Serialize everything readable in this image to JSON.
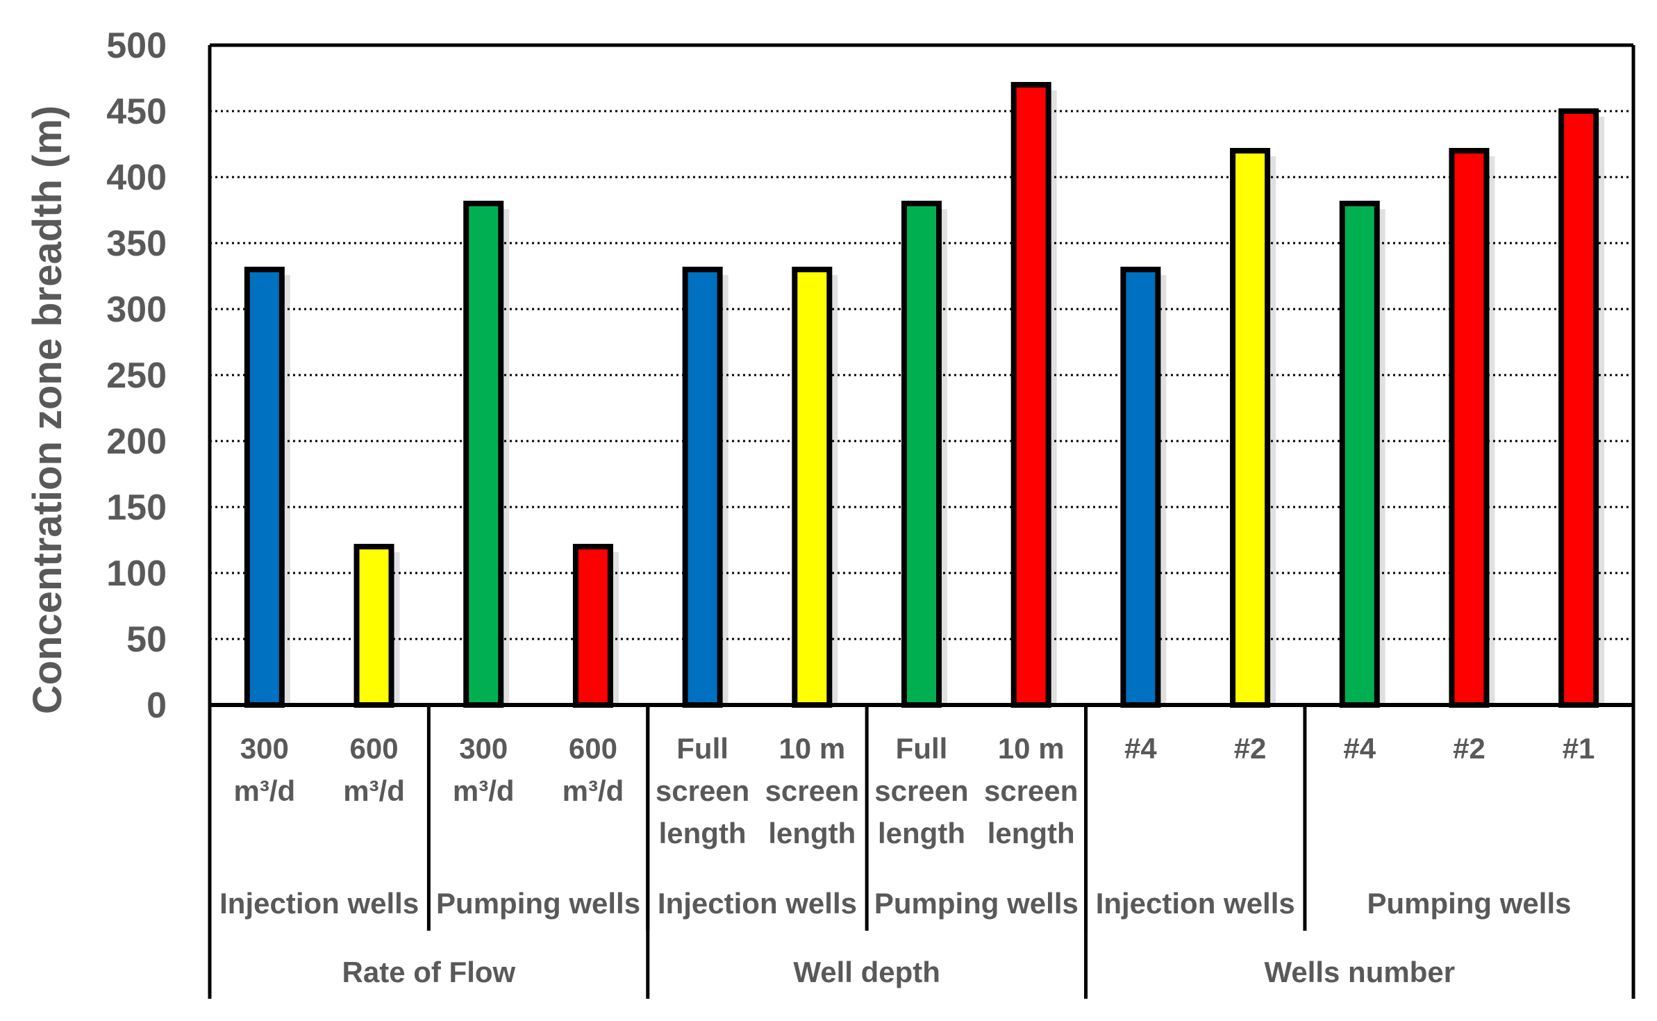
{
  "chart_data": {
    "type": "bar",
    "ylabel": "Concentration zone breadth (m)",
    "xlabel": "",
    "ylim": [
      0,
      500
    ],
    "yticks": [
      "0",
      "50",
      "100",
      "150",
      "200",
      "250",
      "300",
      "350",
      "400",
      "450",
      "500"
    ],
    "grid": "horizontal dotted",
    "categories": [
      [
        "300",
        "m³/d"
      ],
      [
        "600",
        "m³/d"
      ],
      [
        "300",
        "m³/d"
      ],
      [
        "600",
        "m³/d"
      ],
      [
        "Full",
        "screen",
        "length"
      ],
      [
        "10 m",
        "screen",
        "length"
      ],
      [
        "Full",
        "screen",
        "length"
      ],
      [
        "10 m",
        "screen",
        "length"
      ],
      [
        "#4"
      ],
      [
        "#2"
      ],
      [
        "#4"
      ],
      [
        "#2"
      ],
      [
        "#1"
      ]
    ],
    "values": [
      330,
      120,
      380,
      120,
      330,
      330,
      380,
      470,
      330,
      420,
      380,
      420,
      450
    ],
    "bar_colors": [
      "#0070C0",
      "#FFFF00",
      "#00B050",
      "#FF0000",
      "#0070C0",
      "#FFFF00",
      "#00B050",
      "#FF0000",
      "#0070C0",
      "#FFFF00",
      "#00B050",
      "#FF0000",
      "#FF0000"
    ],
    "subgroups": [
      {
        "label": "Injection wells",
        "start": 0,
        "end": 1
      },
      {
        "label": "Pumping wells",
        "start": 2,
        "end": 3
      },
      {
        "label": "Injection wells",
        "start": 4,
        "end": 5
      },
      {
        "label": "Pumping wells",
        "start": 6,
        "end": 7
      },
      {
        "label": "Injection wells",
        "start": 8,
        "end": 9
      },
      {
        "label": "Pumping wells",
        "start": 10,
        "end": 12
      }
    ],
    "groups": [
      {
        "label": "Rate of Flow",
        "start": 0,
        "end": 3
      },
      {
        "label": "Well depth",
        "start": 4,
        "end": 7
      },
      {
        "label": "Wells number",
        "start": 8,
        "end": 12
      }
    ]
  }
}
